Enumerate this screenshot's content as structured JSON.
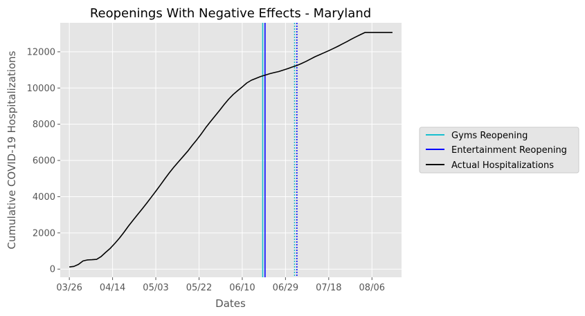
{
  "chart_data": {
    "type": "line",
    "title": "Reopenings With Negative Effects - Maryland",
    "xlabel": "Dates",
    "ylabel": "Cumulative COVID-19 Hospitalizations",
    "x_tick_labels": [
      "03/26",
      "04/14",
      "05/03",
      "05/22",
      "06/10",
      "06/29",
      "07/18",
      "08/06"
    ],
    "x_tick_day_offsets": [
      0,
      19,
      38,
      57,
      76,
      95,
      114,
      133
    ],
    "y_ticks": [
      0,
      2000,
      4000,
      6000,
      8000,
      10000,
      12000
    ],
    "xlim": [
      "03/22",
      "08/19"
    ],
    "ylim": [
      -450,
      13600
    ],
    "grid": true,
    "legend_position": "outside-right",
    "series": [
      {
        "name": "Actual Hospitalizations",
        "color": "#000000",
        "x": [
          "03/26",
          "03/28",
          "03/30",
          "04/01",
          "04/03",
          "04/05",
          "04/07",
          "04/09",
          "04/11",
          "04/13",
          "04/15",
          "04/17",
          "04/19",
          "04/21",
          "04/23",
          "04/25",
          "04/27",
          "04/29",
          "05/01",
          "05/03",
          "05/05",
          "05/07",
          "05/09",
          "05/11",
          "05/13",
          "05/15",
          "05/17",
          "05/19",
          "05/21",
          "05/23",
          "05/25",
          "05/27",
          "05/29",
          "05/31",
          "06/02",
          "06/04",
          "06/06",
          "06/08",
          "06/10",
          "06/12",
          "06/14",
          "06/16",
          "06/18",
          "06/20",
          "06/22",
          "06/24",
          "06/26",
          "06/28",
          "06/30",
          "07/02",
          "07/04",
          "07/06",
          "07/08",
          "07/10",
          "07/12",
          "07/14",
          "07/16",
          "07/18",
          "07/20",
          "07/22",
          "07/24",
          "07/26",
          "07/28",
          "07/30",
          "08/01",
          "08/03",
          "08/05",
          "08/07",
          "08/09",
          "08/11",
          "08/13",
          "08/15"
        ],
        "values": [
          120,
          150,
          260,
          450,
          510,
          520,
          540,
          700,
          930,
          1150,
          1420,
          1710,
          2030,
          2380,
          2700,
          3010,
          3320,
          3640,
          3970,
          4300,
          4640,
          4990,
          5330,
          5640,
          5930,
          6220,
          6510,
          6830,
          7140,
          7470,
          7820,
          8140,
          8450,
          8760,
          9080,
          9380,
          9640,
          9860,
          10060,
          10280,
          10430,
          10530,
          10630,
          10710,
          10790,
          10850,
          10910,
          10990,
          11070,
          11160,
          11240,
          11350,
          11470,
          11600,
          11730,
          11840,
          11950,
          12060,
          12180,
          12300,
          12430,
          12560,
          12700,
          12830,
          12950,
          13070,
          13070,
          13070,
          13070,
          13070,
          13070,
          13070
        ]
      }
    ],
    "vlines": [
      {
        "name": "Gyms Reopening",
        "date": "06/19",
        "color": "#17becf",
        "style": "solid",
        "show_in_legend": true
      },
      {
        "name": "Entertainment Reopening",
        "date": "06/20",
        "color": "#0000ff",
        "style": "solid",
        "show_in_legend": true
      },
      {
        "name": "",
        "date": "07/03",
        "color": "#17becf",
        "style": "dotted",
        "show_in_legend": false
      },
      {
        "name": "",
        "date": "07/04",
        "color": "#0000ff",
        "style": "dotted",
        "show_in_legend": false
      }
    ]
  },
  "legend": {
    "items": [
      {
        "label": "Gyms Reopening",
        "color": "#17becf"
      },
      {
        "label": "Entertainment Reopening",
        "color": "#0000ff"
      },
      {
        "label": "Actual Hospitalizations",
        "color": "#000000"
      }
    ]
  }
}
